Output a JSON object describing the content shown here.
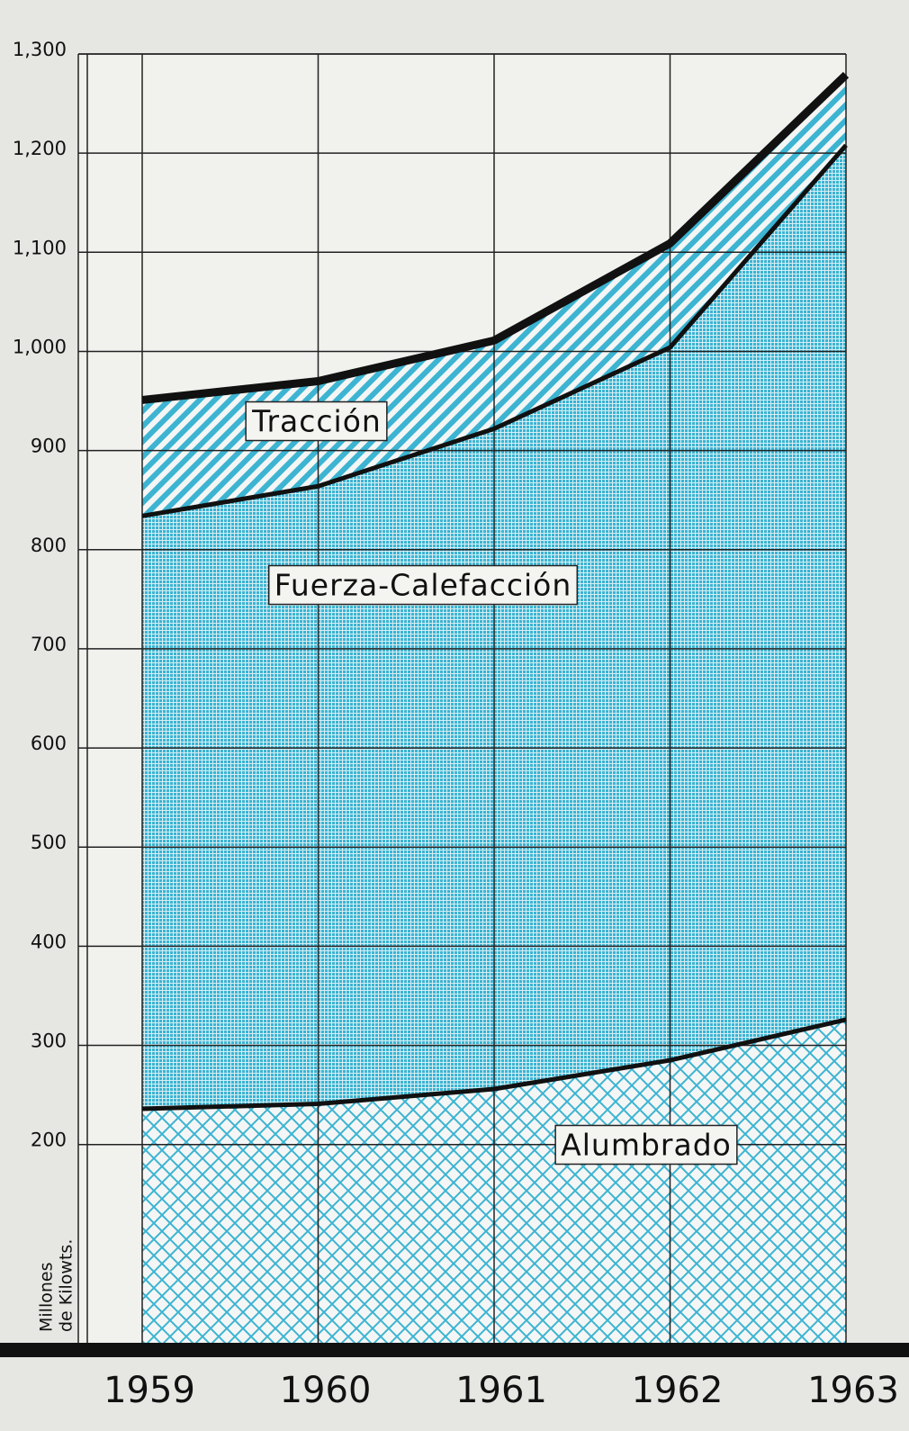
{
  "chart_data": {
    "type": "stacked_area",
    "ylabel": [
      "Millones",
      "de Kilowts."
    ],
    "categories": [
      "1959",
      "1960",
      "1961",
      "1962",
      "1963"
    ],
    "series": [
      {
        "name": "Alumbrado",
        "color": "#3cb4d2",
        "values": [
          236,
          241,
          256,
          285,
          326
        ]
      },
      {
        "name": "Fuerza-Calefacción",
        "color": "#3cb4d2",
        "values": [
          598,
          623,
          666,
          719,
          882
        ]
      },
      {
        "name": "Tracción",
        "color": "#3cb4d2",
        "values": [
          117,
          106,
          89,
          105,
          71
        ]
      }
    ],
    "ylim": [
      0,
      1300
    ],
    "yticks": [
      200,
      300,
      400,
      500,
      600,
      700,
      800,
      900,
      {
        "value": 1000,
        "label": "1,000"
      },
      {
        "value": 1100,
        "label": "1,100"
      },
      {
        "value": 1200,
        "label": "1,200"
      },
      {
        "value": 1300,
        "label": "1,300"
      }
    ],
    "grid": true
  }
}
